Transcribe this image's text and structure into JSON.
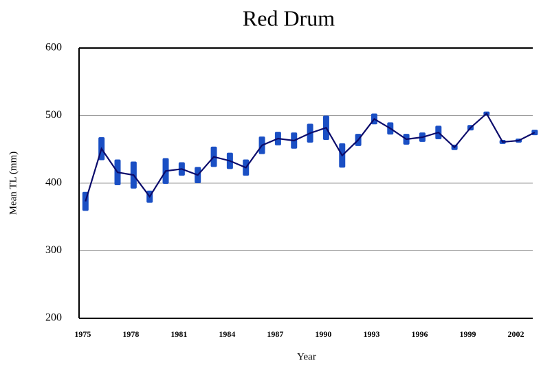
{
  "chart_data": {
    "type": "line",
    "title": "Red Drum",
    "x_label": "Year",
    "y_label": "Mean TL (mm)",
    "x": [
      1975,
      1976,
      1977,
      1978,
      1979,
      1980,
      1981,
      1982,
      1983,
      1984,
      1985,
      1986,
      1987,
      1988,
      1989,
      1990,
      1991,
      1992,
      1993,
      1994,
      1995,
      1996,
      1997,
      1998,
      1999,
      2000,
      2001,
      2002,
      2003
    ],
    "series": [
      {
        "color": "#0b0b6b",
        "error_color": "#1a4fc4",
        "values": [
          373,
          451,
          416,
          412,
          380,
          418,
          421,
          412,
          439,
          433,
          423,
          456,
          466,
          463,
          474,
          482,
          441,
          464,
          495,
          481,
          465,
          468,
          475,
          453,
          482,
          503,
          461,
          463,
          475
        ],
        "errors": [
          14,
          17,
          19,
          20,
          9,
          19,
          10,
          12,
          15,
          12,
          12,
          13,
          10,
          12,
          14,
          18,
          18,
          9,
          8,
          9,
          8,
          7,
          10,
          4,
          4,
          3,
          3,
          3,
          4
        ]
      }
    ],
    "xlim": [
      1974.6,
      2003.05
    ],
    "xticks": [
      1975,
      1978,
      1981,
      1984,
      1987,
      1990,
      1993,
      1996,
      1999,
      2002
    ],
    "ylim": [
      200,
      600
    ],
    "yticks": [
      200,
      300,
      400,
      500,
      600
    ],
    "grid": true
  }
}
